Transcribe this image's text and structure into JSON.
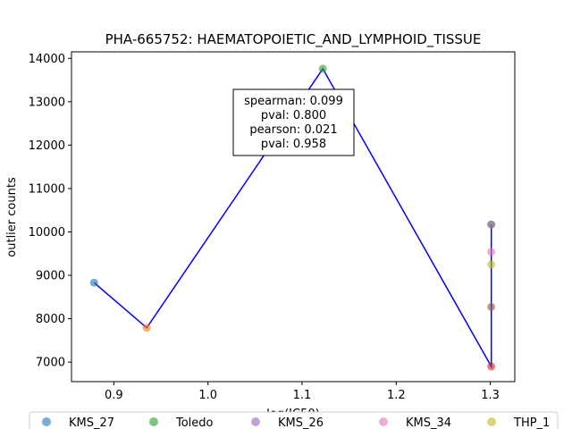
{
  "chart_data": {
    "type": "scatter",
    "title": "PHA-665752: HAEMATOPOIETIC_AND_LYMPHOID_TISSUE",
    "xlabel": "log(IC50)",
    "ylabel": "outlier counts",
    "xlim": [
      0.855,
      1.326
    ],
    "ylim": [
      6550,
      14150
    ],
    "xticks": [
      0.9,
      1.0,
      1.1,
      1.2,
      1.3
    ],
    "xtick_labels": [
      "0.9",
      "1.0",
      "1.1",
      "1.2",
      "1.3"
    ],
    "yticks": [
      7000,
      8000,
      9000,
      10000,
      11000,
      12000,
      13000,
      14000
    ],
    "ytick_labels": [
      "7000",
      "8000",
      "9000",
      "10000",
      "11000",
      "12000",
      "13000",
      "14000"
    ],
    "grid": false,
    "line": {
      "color": "#0000ff",
      "points": [
        [
          0.879,
          8830
        ],
        [
          0.935,
          7790
        ],
        [
          1.122,
          13760
        ],
        [
          1.301,
          6900
        ],
        [
          1.301,
          10170
        ],
        [
          1.301,
          8270
        ],
        [
          1.301,
          9540
        ],
        [
          1.301,
          9250
        ]
      ]
    },
    "points": [
      {
        "x": 0.879,
        "y": 8830,
        "color": "#1f77b4"
      },
      {
        "x": 0.935,
        "y": 7790,
        "color": "#ff7f0e"
      },
      {
        "x": 1.122,
        "y": 13760,
        "color": "#2ca02c"
      },
      {
        "x": 1.301,
        "y": 6900,
        "color": "#d62728"
      },
      {
        "x": 1.301,
        "y": 10170,
        "color": "#9467bd"
      },
      {
        "x": 1.301,
        "y": 8270,
        "color": "#8c564b"
      },
      {
        "x": 1.301,
        "y": 9540,
        "color": "#e377c2"
      },
      {
        "x": 1.301,
        "y": 10170,
        "color": "#7f7f7f"
      },
      {
        "x": 1.301,
        "y": 9250,
        "color": "#bcbd22"
      }
    ],
    "annotation": {
      "lines": [
        "spearman: 0.099",
        "pval: 0.800",
        "pearson: 0.021",
        "pval: 0.958"
      ]
    },
    "legend": {
      "placement": "bottom",
      "entries": [
        {
          "label": "KMS_27",
          "color": "#1f77b4"
        },
        {
          "label": "Toledo",
          "color": "#2ca02c"
        },
        {
          "label": "KMS_26",
          "color": "#9467bd"
        },
        {
          "label": "KMS_34",
          "color": "#e377c2"
        },
        {
          "label": "THP_1",
          "color": "#bcbd22"
        }
      ]
    }
  }
}
